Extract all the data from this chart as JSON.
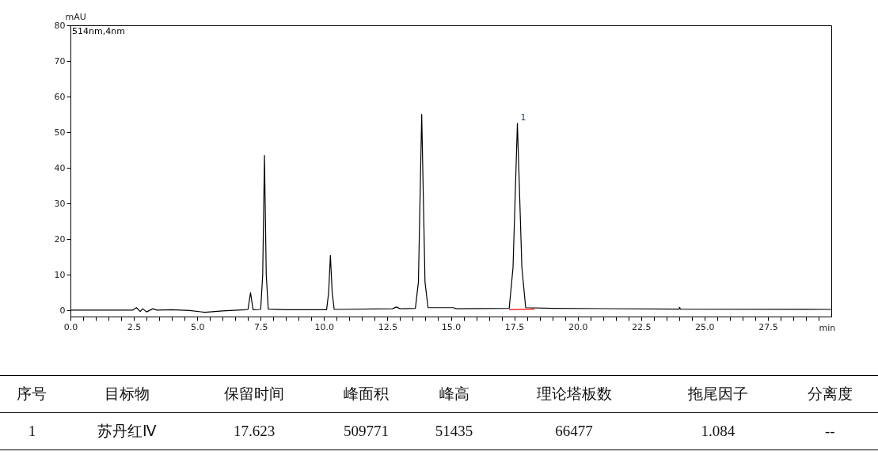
{
  "chart_data": [
    {
      "type": "line",
      "xlabel": "min",
      "ylabel": "mAU",
      "xlim": [
        0,
        30
      ],
      "ylim": [
        -1.7,
        80
      ],
      "xticks": [
        {
          "value": 0,
          "label": "0.0"
        },
        {
          "value": 0.5,
          "label": null
        },
        {
          "value": 1,
          "label": null
        },
        {
          "value": 1.5,
          "label": null
        },
        {
          "value": 2,
          "label": null
        },
        2.5,
        {
          "value": 3,
          "label": null
        },
        {
          "value": 3.5,
          "label": null
        },
        {
          "value": 4,
          "label": null
        },
        {
          "value": 4.5,
          "label": null
        },
        {
          "value": 5,
          "label": "5.0"
        },
        {
          "value": 5.5,
          "label": null
        },
        {
          "value": 6,
          "label": null
        },
        {
          "value": 6.5,
          "label": null
        },
        {
          "value": 7,
          "label": null
        },
        7.5,
        {
          "value": 8,
          "label": null
        },
        {
          "value": 8.5,
          "label": null
        },
        {
          "value": 9,
          "label": null
        },
        {
          "value": 9.5,
          "label": null
        },
        {
          "value": 10,
          "label": "10.0"
        },
        {
          "value": 10.5,
          "label": null
        },
        {
          "value": 11,
          "label": null
        },
        {
          "value": 11.5,
          "label": null
        },
        {
          "value": 12,
          "label": null
        },
        12.5,
        {
          "value": 13,
          "label": null
        },
        {
          "value": 13.5,
          "label": null
        },
        {
          "value": 14,
          "label": null
        },
        {
          "value": 14.5,
          "label": null
        },
        {
          "value": 15,
          "label": "15.0"
        },
        {
          "value": 15.5,
          "label": null
        },
        {
          "value": 16,
          "label": null
        },
        {
          "value": 16.5,
          "label": null
        },
        {
          "value": 17,
          "label": null
        },
        17.5,
        {
          "value": 18,
          "label": null
        },
        {
          "value": 18.5,
          "label": null
        },
        {
          "value": 19,
          "label": null
        },
        {
          "value": 19.5,
          "label": null
        },
        {
          "value": 20,
          "label": "20.0"
        },
        {
          "value": 20.5,
          "label": null
        },
        {
          "value": 21,
          "label": null
        },
        {
          "value": 21.5,
          "label": null
        },
        {
          "value": 22,
          "label": null
        },
        22.5,
        {
          "value": 23,
          "label": null
        },
        {
          "value": 23.5,
          "label": null
        },
        {
          "value": 24,
          "label": null
        },
        {
          "value": 24.5,
          "label": null
        },
        {
          "value": 25,
          "label": "25.0"
        },
        {
          "value": 25.5,
          "label": null
        },
        {
          "value": 26,
          "label": null
        },
        {
          "value": 26.5,
          "label": null
        },
        {
          "value": 27,
          "label": null
        },
        27.5,
        {
          "value": 28,
          "label": null
        },
        {
          "value": 28.5,
          "label": null
        },
        {
          "value": 29,
          "label": null
        },
        {
          "value": 29.5,
          "label": null
        }
      ],
      "yticks": [
        0,
        10,
        20,
        30,
        40,
        50,
        60,
        70,
        80
      ],
      "series": [
        {
          "color": "#000000",
          "x": [
            0,
            2.0,
            2.45,
            2.6,
            2.75,
            2.85,
            3.0,
            3.25,
            3.4,
            4.0,
            4.7,
            5.3,
            6.0,
            6.9,
            7.0,
            7.1,
            7.2,
            7.5,
            7.58,
            7.65,
            7.72,
            7.8,
            8.5,
            10.1,
            10.18,
            10.25,
            10.32,
            10.4,
            12.7,
            12.85,
            13.0,
            13.6,
            13.72,
            13.85,
            13.98,
            14.1,
            15.1,
            15.2,
            17.3,
            17.45,
            17.623,
            17.8,
            17.95,
            19.0,
            24.0,
            24.02,
            24.05,
            30
          ],
          "values": [
            0.1,
            0.1,
            0.1,
            0.8,
            -0.3,
            0.5,
            -0.4,
            0.5,
            0.1,
            0.2,
            0,
            -0.5,
            -0.1,
            0.2,
            0.3,
            5.0,
            0.2,
            0.3,
            10,
            43.5,
            10,
            0.4,
            0.2,
            0.2,
            5,
            15.5,
            5,
            0.3,
            0.5,
            1.0,
            0.5,
            0.6,
            8,
            55,
            8,
            0.8,
            0.8,
            0.5,
            0.6,
            12,
            52.5,
            12,
            0.8,
            0.6,
            0.4,
            0.9,
            0.4,
            0.3
          ]
        },
        {
          "color": "#ff0000",
          "x": [
            17.3,
            18.3
          ],
          "values": [
            0.2,
            0.4
          ]
        }
      ],
      "annotations": [
        "514nm,4nm",
        {
          "text": "1",
          "x": 17.623,
          "y": 52.5
        }
      ]
    },
    {
      "type": "other",
      "annotations": [
        "序号",
        "目标物",
        "保留时间",
        "峰面积",
        "峰高",
        "理论塔板数",
        "拖尾因子",
        "分离度",
        "1",
        "苏丹红Ⅳ",
        "17.623",
        "509771",
        "51435",
        "66477",
        "1.084",
        "--"
      ]
    }
  ]
}
